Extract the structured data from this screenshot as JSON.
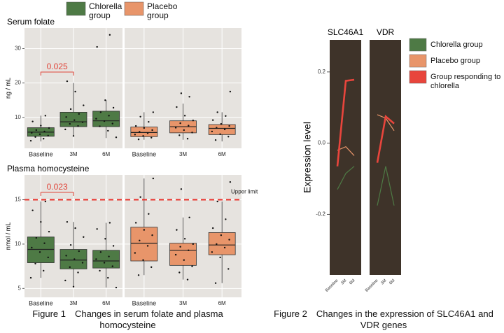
{
  "figure_captions": [
    "Figure 1　Changes in serum folate and plasma homocysteine",
    "Figure 2　Changes in the expression of SLC46A1 and VDR genes"
  ],
  "chart_data": [
    {
      "type": "box",
      "title": "Serum folate",
      "y_label": "ng / mL",
      "ylim": [
        1,
        36
      ],
      "yticks": [
        10,
        20,
        30
      ],
      "categories": [
        "Baseline",
        "3M",
        "6M"
      ],
      "annotations": [
        "0.025"
      ],
      "series": [
        {
          "name": "Chlorella group",
          "color": "#4e7a45",
          "boxes": [
            {
              "min": 3,
              "q1": 4.5,
              "median": 5.7,
              "q3": 7,
              "max": 10.5,
              "points": [
                3.2,
                3.8,
                4.3,
                4.7,
                5.1,
                5.5,
                5.9,
                6.3,
                6.9,
                7.6,
                8.8,
                10.5
              ]
            },
            {
              "min": 4.5,
              "q1": 7.3,
              "median": 8.7,
              "q3": 11.5,
              "max": 20,
              "points": [
                4.6,
                6.5,
                7.5,
                8.1,
                8.6,
                9.2,
                10.1,
                11,
                12.4,
                13.5,
                17.5,
                20.5
              ]
            },
            {
              "min": 4,
              "q1": 7.3,
              "median": 9,
              "q3": 11.8,
              "max": 15,
              "points": [
                4.2,
                6.1,
                7.4,
                8.2,
                8.9,
                9.6,
                10.5,
                11.5,
                12.8,
                15,
                30.5,
                34
              ]
            }
          ]
        },
        {
          "name": "Placebo group",
          "color": "#e8956a",
          "boxes": [
            {
              "min": 3.5,
              "q1": 4.4,
              "median": 5.6,
              "q3": 7.2,
              "max": 11.5,
              "points": [
                3.6,
                4.1,
                4.6,
                5,
                5.4,
                5.8,
                6.3,
                6.9,
                7.5,
                8.7,
                10.2,
                11.5
              ]
            },
            {
              "min": 3.5,
              "q1": 5.5,
              "median": 7.3,
              "q3": 9,
              "max": 14,
              "points": [
                3.8,
                4.8,
                5.6,
                6.3,
                7,
                7.6,
                8.3,
                9.1,
                10.5,
                13,
                16,
                17
              ]
            },
            {
              "min": 3,
              "q1": 5,
              "median": 6.8,
              "q3": 7.9,
              "max": 11.5,
              "points": [
                3.4,
                4.4,
                5.1,
                5.9,
                6.5,
                7,
                7.5,
                8.1,
                9.2,
                10.4,
                11.5,
                17.5
              ]
            }
          ]
        }
      ]
    },
    {
      "type": "box",
      "title": "Plasma homocysteine",
      "y_label": "nmol / mL",
      "ylim": [
        4,
        17.8
      ],
      "yticks": [
        5,
        10,
        15
      ],
      "categories": [
        "Baseline",
        "3M",
        "6M"
      ],
      "annotations": [
        "0.023"
      ],
      "reference_line": {
        "value": 15,
        "label": "Upper limit"
      },
      "series": [
        {
          "boxes": [
            {
              "min": 6.2,
              "q1": 7.9,
              "median": 9.4,
              "q3": 10.8,
              "max": 14.8,
              "points": [
                6.2,
                7,
                7.8,
                8.5,
                9.1,
                9.6,
                10.1,
                10.7,
                11.4,
                12.5,
                13.8,
                14.8
              ]
            },
            {
              "min": 5.2,
              "q1": 7.2,
              "median": 8.2,
              "q3": 9.4,
              "max": 12.5,
              "points": [
                5.2,
                5.9,
                6.8,
                7.4,
                7.9,
                8.3,
                8.7,
                9.2,
                9.9,
                10.8,
                11.8,
                12.5
              ]
            },
            {
              "min": 5.1,
              "q1": 7.3,
              "median": 8.1,
              "q3": 9.3,
              "max": 12.4,
              "points": [
                5.1,
                6.2,
                7,
                7.5,
                7.9,
                8.3,
                8.6,
                9.1,
                9.8,
                10.6,
                11.7,
                12.4
              ]
            }
          ]
        },
        {
          "boxes": [
            {
              "min": 6.5,
              "q1": 8.1,
              "median": 10.1,
              "q3": 11.9,
              "max": 17.4,
              "points": [
                6.5,
                7.4,
                8.2,
                9,
                9.8,
                10.4,
                11,
                11.6,
                12.4,
                13.4,
                15.3,
                17.4
              ]
            },
            {
              "min": 6,
              "q1": 7.6,
              "median": 9.3,
              "q3": 10.1,
              "max": 13,
              "points": [
                6,
                6.8,
                7.5,
                8.2,
                8.8,
                9.3,
                9.7,
                10,
                10.6,
                11.6,
                13,
                16.2
              ]
            },
            {
              "min": 5.6,
              "q1": 8.8,
              "median": 9.9,
              "q3": 11.3,
              "max": 14.8,
              "points": [
                5.6,
                7.2,
                8.5,
                9.1,
                9.6,
                10,
                10.5,
                11,
                11.8,
                12.8,
                14.8,
                17
              ]
            }
          ]
        }
      ]
    },
    {
      "type": "line",
      "y_label": "Expression level",
      "ylim": [
        -0.37,
        0.29
      ],
      "yticks": [
        {
          "value": -0.2,
          "label": "-0.2"
        },
        {
          "value": 0,
          "label": "0.0"
        },
        {
          "value": 0.2,
          "label": "0.2"
        }
      ],
      "panels": [
        "SLC46A1",
        "VDR"
      ],
      "categories": [
        "Baseline",
        "3M",
        "6M"
      ],
      "series": [
        {
          "name": "Chlorella group",
          "color": "#4e7a45",
          "values": [
            [
              -0.13,
              -0.085,
              -0.065
            ],
            [
              -0.175,
              -0.065,
              -0.175
            ]
          ]
        },
        {
          "name": "Placebo group",
          "color": "#e8956a",
          "values": [
            [
              -0.02,
              -0.01,
              -0.035
            ],
            [
              0.08,
              0.07,
              0.035
            ]
          ]
        },
        {
          "name": "Group responding to chlorella",
          "color": "#e8453c",
          "values": [
            [
              -0.065,
              0.175,
              0.178
            ],
            [
              -0.055,
              0.075,
              0.055
            ]
          ]
        }
      ]
    }
  ]
}
